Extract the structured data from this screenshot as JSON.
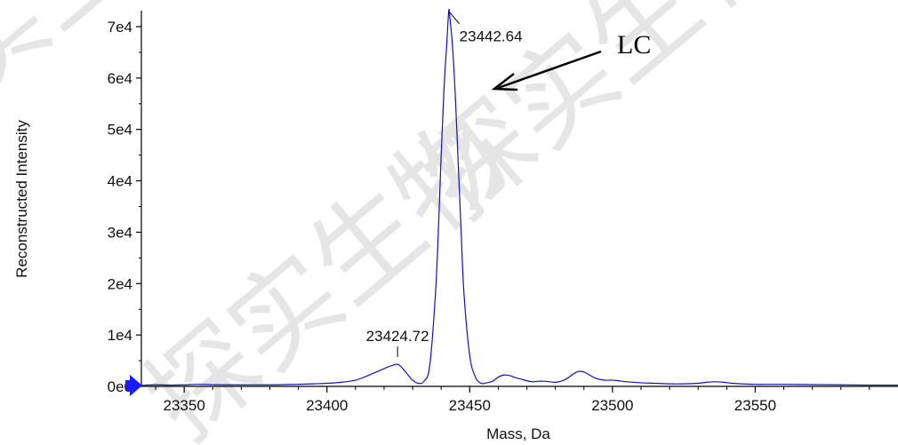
{
  "chart_data": {
    "type": "line",
    "xlabel": "Mass, Da",
    "ylabel": "Reconstructed Intensity",
    "xlim": [
      23335,
      23600
    ],
    "ylim": [
      0,
      74000
    ],
    "x_ticks": [
      23350,
      23400,
      23450,
      23500,
      23550
    ],
    "x_tick_labels": [
      "23350",
      "23400",
      "23450",
      "23500",
      "23550"
    ],
    "y_ticks": [
      0,
      10000,
      20000,
      30000,
      40000,
      50000,
      60000,
      70000
    ],
    "y_tick_labels": [
      "0e0",
      "1e4",
      "2e4",
      "3e4",
      "4e4",
      "5e4",
      "6e4",
      "7e4"
    ],
    "series": [
      {
        "color": "#1010c8",
        "x": [
          23335,
          23340,
          23345,
          23350,
          23355,
          23360,
          23365,
          23370,
          23375,
          23380,
          23385,
          23390,
          23395,
          23400,
          23405,
          23410,
          23413,
          23416,
          23419,
          23421,
          23423,
          23424.72,
          23426,
          23428,
          23430,
          23432,
          23434,
          23436,
          23438,
          23439,
          23440,
          23441,
          23442,
          23442.64,
          23443,
          23444,
          23445,
          23446,
          23447,
          23448,
          23450,
          23452,
          23454,
          23456,
          23458,
          23460,
          23462,
          23464,
          23466,
          23468,
          23470,
          23472,
          23474,
          23476,
          23478,
          23480,
          23482,
          23484,
          23486,
          23488,
          23490,
          23492,
          23494,
          23496,
          23498,
          23500,
          23502,
          23505,
          23510,
          23515,
          23520,
          23525,
          23530,
          23533,
          23536,
          23539,
          23542,
          23545,
          23550,
          23555,
          23560,
          23570,
          23580,
          23590,
          23600
        ],
        "y": [
          200,
          300,
          250,
          300,
          400,
          350,
          300,
          300,
          300,
          300,
          350,
          400,
          500,
          600,
          800,
          1200,
          1800,
          2500,
          3200,
          3700,
          4100,
          4300,
          3800,
          2500,
          1200,
          600,
          1000,
          4000,
          18000,
          30000,
          45000,
          58000,
          67000,
          73000,
          72000,
          66000,
          56000,
          43000,
          30000,
          18000,
          6000,
          1800,
          600,
          700,
          1000,
          1800,
          2200,
          2100,
          1700,
          1400,
          1100,
          900,
          1000,
          1000,
          900,
          800,
          1000,
          1500,
          2300,
          2900,
          2800,
          2200,
          1600,
          1300,
          1200,
          1200,
          1100,
          900,
          700,
          600,
          500,
          500,
          600,
          800,
          900,
          800,
          600,
          500,
          400,
          400,
          400,
          350,
          300,
          250,
          250
        ]
      }
    ],
    "peak_labels": [
      {
        "text": "23442.64",
        "x": 23442.64,
        "y": 73000
      },
      {
        "text": "23424.72",
        "x": 23424.72,
        "y": 4300
      }
    ],
    "annotation": "LC"
  },
  "watermark": "探实生物"
}
